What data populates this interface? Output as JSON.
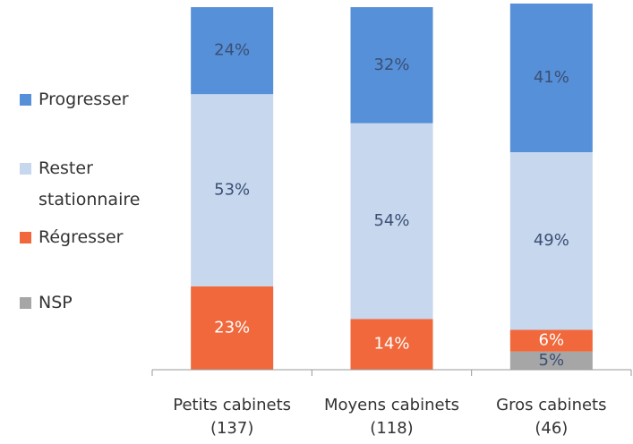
{
  "chart_data": {
    "type": "stacked_bar",
    "categories": [
      [
        "Petits cabinets",
        "(137)"
      ],
      [
        "Moyens cabinets",
        "(118)"
      ],
      [
        "Gros cabinets",
        "(46)"
      ]
    ],
    "series": [
      {
        "name": "NSP",
        "color": "#a6a6a6",
        "values": [
          0,
          0,
          5
        ],
        "value_labels": [
          null,
          null,
          "5%"
        ]
      },
      {
        "name": "Régresser",
        "color": "#f0683b",
        "values": [
          23,
          14,
          6
        ],
        "value_labels": [
          "23%",
          "14%",
          "6%"
        ]
      },
      {
        "name": "Rester stationnaire",
        "color": "#c6d7ee",
        "values": [
          53,
          54,
          49
        ],
        "value_labels": [
          "53%",
          "54%",
          "49%"
        ]
      },
      {
        "name": "Progresser",
        "color": "#5590d8",
        "values": [
          24,
          32,
          41
        ],
        "value_labels": [
          "24%",
          "32%",
          "41%"
        ]
      }
    ],
    "ylim": [
      0,
      100
    ]
  }
}
